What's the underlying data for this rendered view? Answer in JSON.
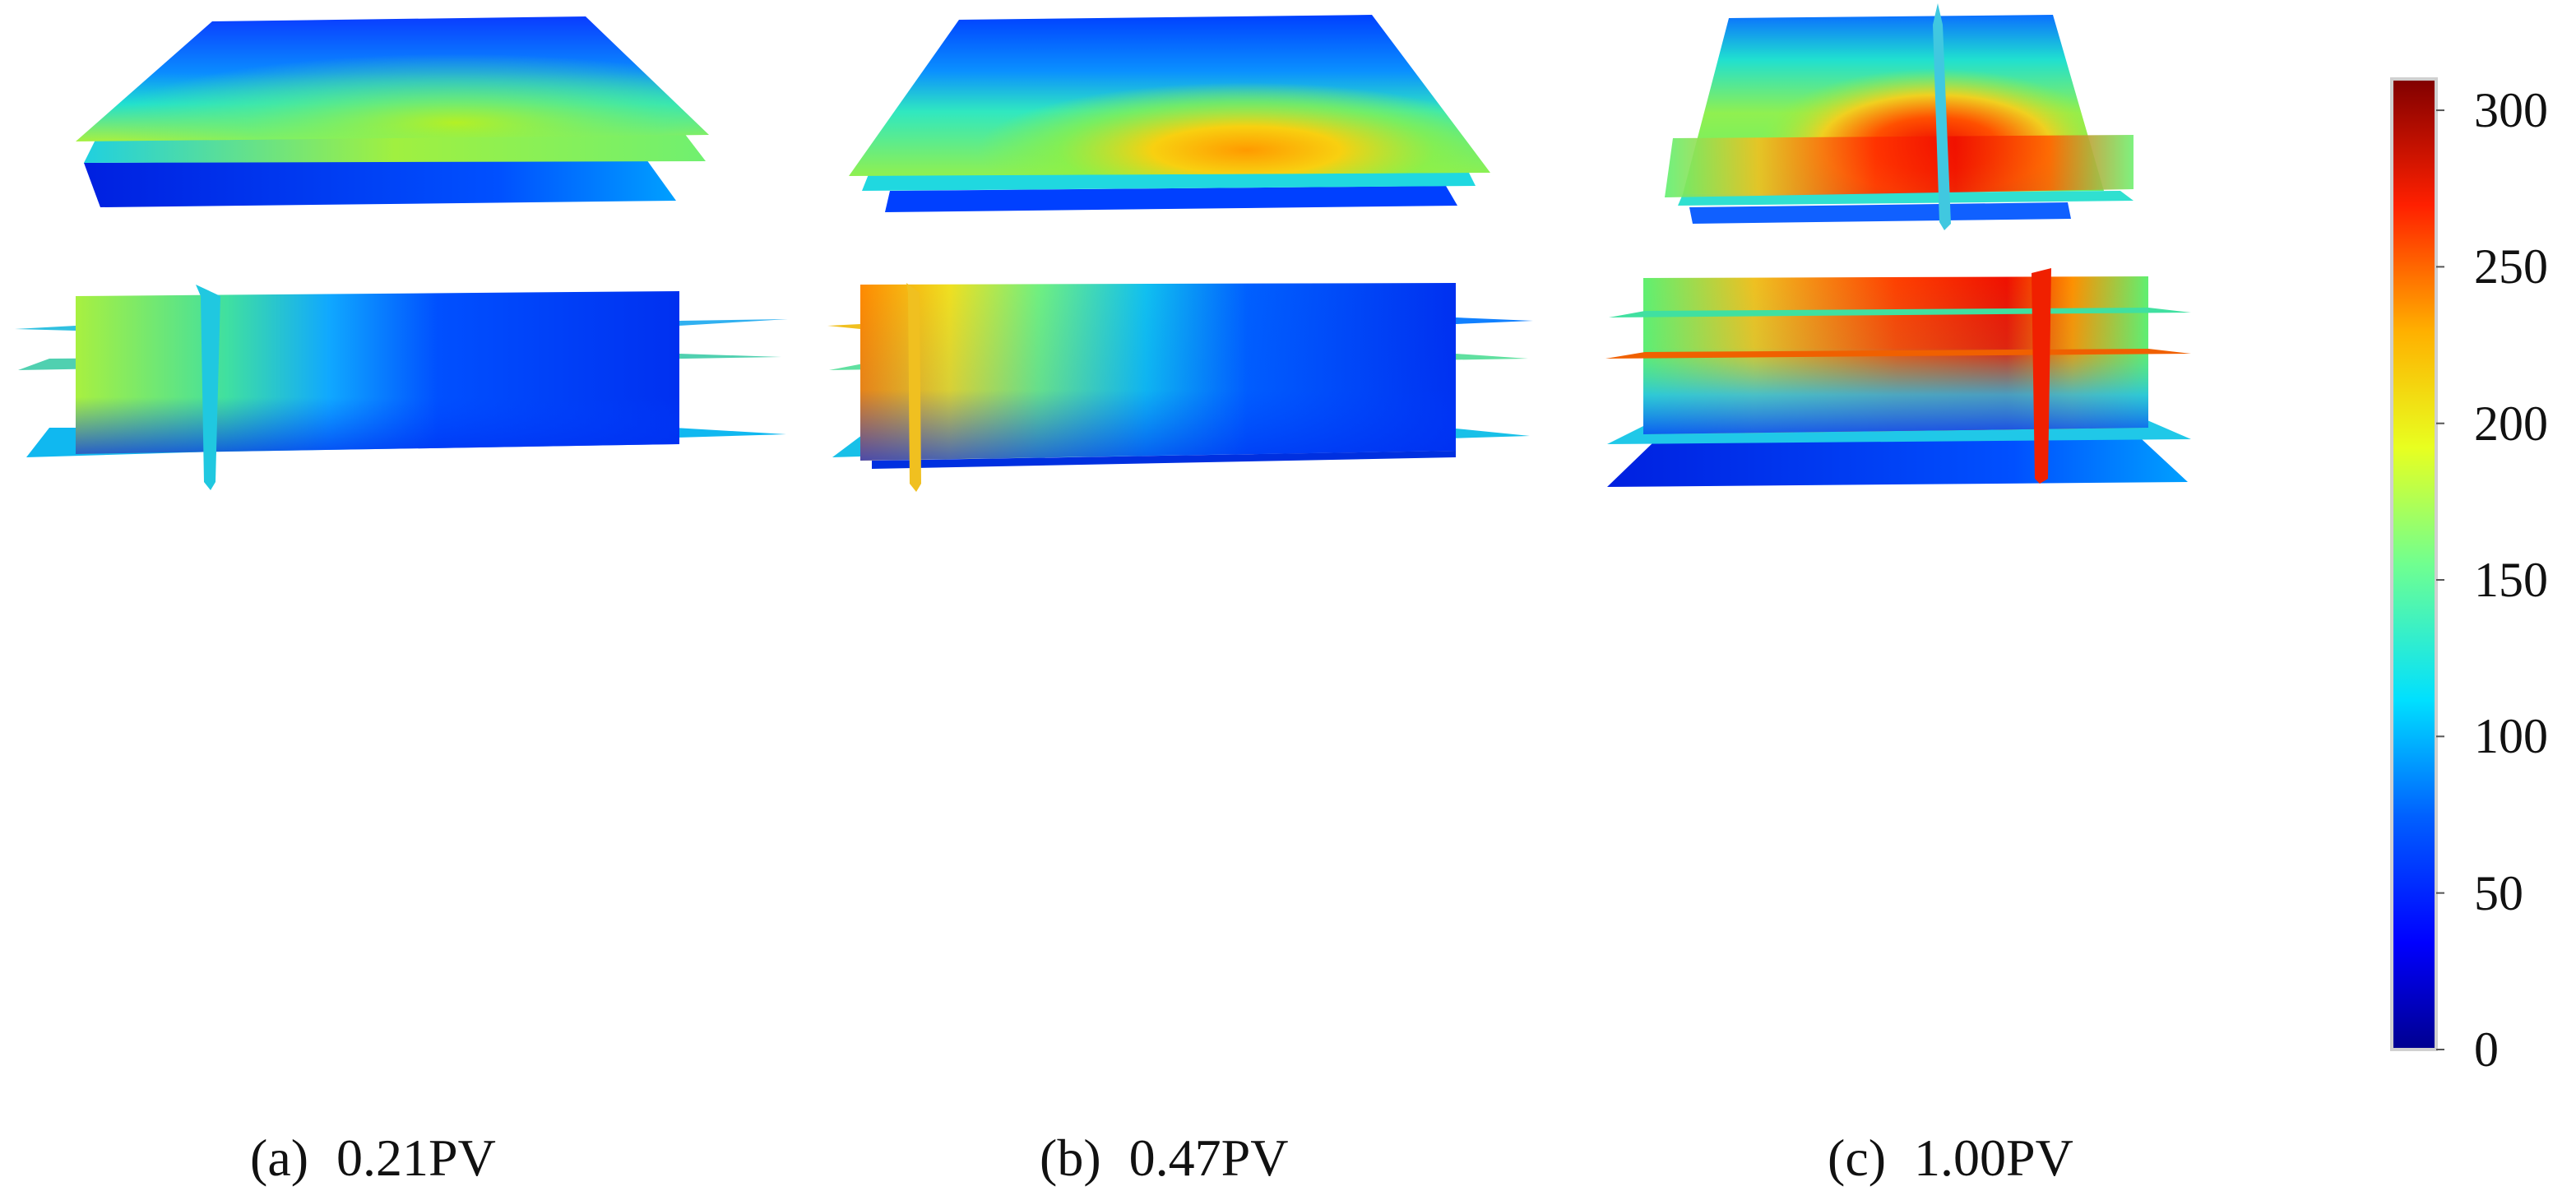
{
  "panels": [
    {
      "id": "a",
      "tag": "(a)",
      "label": "0.21PV"
    },
    {
      "id": "b",
      "tag": "(b)",
      "label": "0.47PV"
    },
    {
      "id": "c",
      "tag": "(c)",
      "label": "1.00PV"
    }
  ],
  "colorbar": {
    "min": 0,
    "max": 310,
    "ticks": [
      "300",
      "250",
      "200",
      "150",
      "100",
      "50",
      "0"
    ],
    "colormap": "jet",
    "colors": [
      "#00008f",
      "#0000ff",
      "#0080ff",
      "#00ffff",
      "#80ff80",
      "#ffff00",
      "#ff8000",
      "#ff0000",
      "#800000"
    ]
  }
}
